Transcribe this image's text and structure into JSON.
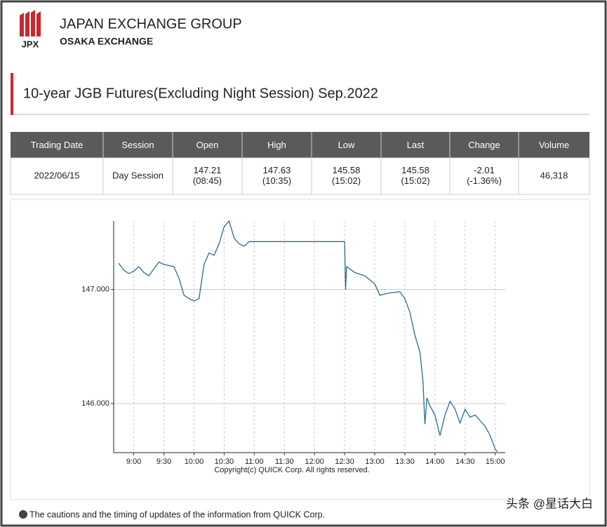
{
  "header": {
    "logo": "JPX",
    "title": "JAPAN EXCHANGE GROUP",
    "subtitle": "OSAKA EXCHANGE"
  },
  "page_title": "10-year JGB Futures(Excluding Night Session) Sep.2022",
  "table": {
    "columns": [
      "Trading Date",
      "Session",
      "Open",
      "High",
      "Low",
      "Last",
      "Change",
      "Volume"
    ],
    "rows": [
      [
        [
          "2022/06/15"
        ],
        [
          "Day Session"
        ],
        [
          "147.21",
          "(08:45)"
        ],
        [
          "147.63",
          "(10:35)"
        ],
        [
          "145.58",
          "(15:02)"
        ],
        [
          "145.58",
          "(15:02)"
        ],
        [
          "-2.01",
          "(-1.36%)"
        ],
        [
          "46,318"
        ]
      ]
    ]
  },
  "chart_data": {
    "type": "line",
    "color": "#2e6a8e",
    "grid": true,
    "x": [
      "8:45",
      "8:50",
      "8:55",
      "9:00",
      "9:05",
      "9:10",
      "9:15",
      "9:20",
      "9:25",
      "9:30",
      "9:40",
      "9:45",
      "9:50",
      "9:55",
      "10:00",
      "10:05",
      "10:10",
      "10:15",
      "10:20",
      "10:25",
      "10:30",
      "10:35",
      "10:40",
      "10:45",
      "10:50",
      "10:55",
      "11:00",
      "12:30",
      "12:31",
      "12:32",
      "12:40",
      "12:50",
      "13:00",
      "13:05",
      "13:15",
      "13:25",
      "13:30",
      "13:35",
      "13:40",
      "13:45",
      "13:48",
      "13:50",
      "13:52",
      "13:55",
      "14:00",
      "14:05",
      "14:10",
      "14:15",
      "14:20",
      "14:25",
      "14:30",
      "14:35",
      "14:40",
      "14:45",
      "14:50",
      "14:55",
      "15:00",
      "15:02"
    ],
    "values": [
      147.23,
      147.17,
      147.14,
      147.16,
      147.2,
      147.15,
      147.12,
      147.18,
      147.24,
      147.22,
      147.2,
      147.1,
      146.95,
      146.92,
      146.9,
      146.92,
      147.22,
      147.32,
      147.3,
      147.4,
      147.55,
      147.6,
      147.45,
      147.4,
      147.38,
      147.42,
      147.42,
      147.42,
      147.0,
      147.2,
      147.15,
      147.12,
      147.05,
      146.95,
      146.97,
      146.98,
      146.92,
      146.8,
      146.6,
      146.45,
      146.2,
      145.82,
      146.05,
      145.98,
      145.9,
      145.72,
      145.9,
      146.02,
      145.95,
      145.83,
      145.95,
      145.88,
      145.9,
      145.85,
      145.8,
      145.72,
      145.6,
      145.58
    ],
    "xlim": [
      "8:40",
      "15:10"
    ],
    "xticks": [
      "9:00",
      "9:30",
      "10:00",
      "10:30",
      "11:00",
      "11:30",
      "12:00",
      "12:30",
      "13:00",
      "13:30",
      "14:00",
      "14:30",
      "15:00"
    ],
    "ylim": [
      145.57,
      147.6
    ],
    "yticks": [
      {
        "value": 147,
        "label": "147.000"
      },
      {
        "value": 146,
        "label": "146.000"
      }
    ],
    "caption": "Copyright(c) QUICK Corp. All rights reserved."
  },
  "footer_note": "The cautions and the timing of updates of the information from QUICK Corp.",
  "watermark": "头条 @星话大白"
}
